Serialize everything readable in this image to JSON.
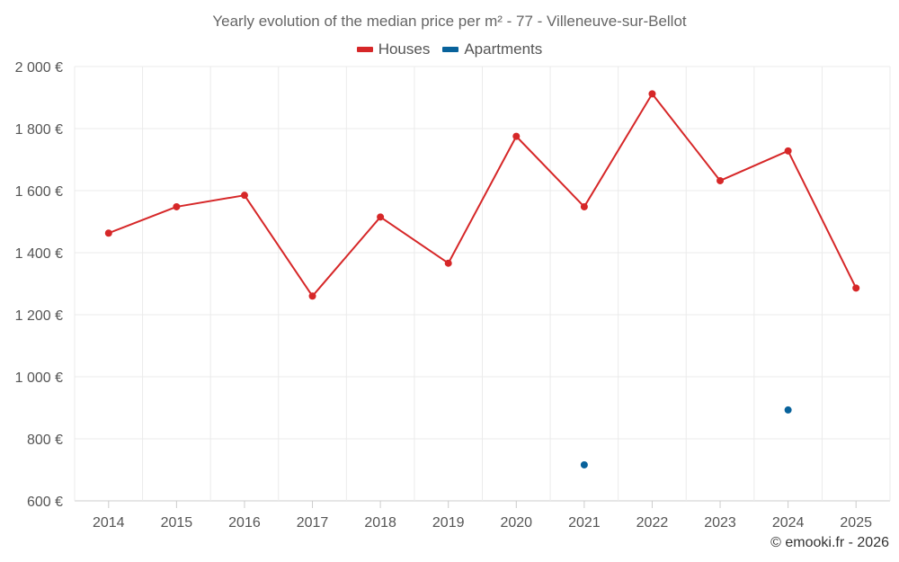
{
  "chart_data": {
    "type": "line",
    "title": "Yearly evolution of the median price per m² - 77 - Villeneuve-sur-Bellot",
    "categories": [
      "2014",
      "2015",
      "2016",
      "2017",
      "2018",
      "2019",
      "2020",
      "2021",
      "2022",
      "2023",
      "2024",
      "2025"
    ],
    "series": [
      {
        "name": "Houses",
        "color": "#d62728",
        "values": [
          1463,
          1548,
          1585,
          1260,
          1515,
          1366,
          1775,
          1548,
          1912,
          1632,
          1728,
          1286
        ]
      },
      {
        "name": "Apartments",
        "color": "#08629b",
        "values": [
          null,
          null,
          null,
          null,
          null,
          null,
          null,
          716,
          null,
          null,
          893,
          null
        ]
      }
    ],
    "yticks": [
      "2 000 €",
      "1 800 €",
      "1 600 €",
      "1 400 €",
      "1 200 €",
      "1 000 €",
      "800 €",
      "600 €"
    ],
    "ytick_values": [
      2000,
      1800,
      1600,
      1400,
      1200,
      1000,
      800,
      600
    ],
    "ylim": [
      600,
      2000
    ],
    "xlabel": "",
    "ylabel": "",
    "grid": true,
    "legend_position": "top-center"
  },
  "credit": "© emooki.fr - 2026"
}
